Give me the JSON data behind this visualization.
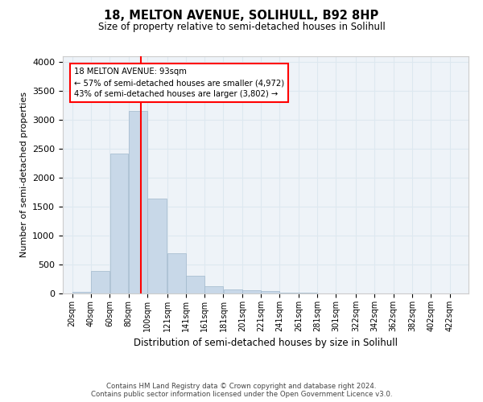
{
  "title": "18, MELTON AVENUE, SOLIHULL, B92 8HP",
  "subtitle": "Size of property relative to semi-detached houses in Solihull",
  "xlabel": "Distribution of semi-detached houses by size in Solihull",
  "ylabel": "Number of semi-detached properties",
  "footer_line1": "Contains HM Land Registry data © Crown copyright and database right 2024.",
  "footer_line2": "Contains public sector information licensed under the Open Government Licence v3.0.",
  "property_label": "18 MELTON AVENUE: 93sqm",
  "smaller_pct": 57,
  "smaller_count": 4972,
  "larger_pct": 43,
  "larger_count": 3802,
  "bin_labels": [
    "20sqm",
    "40sqm",
    "60sqm",
    "80sqm",
    "100sqm",
    "121sqm",
    "141sqm",
    "161sqm",
    "181sqm",
    "201sqm",
    "221sqm",
    "241sqm",
    "261sqm",
    "281sqm",
    "301sqm",
    "322sqm",
    "342sqm",
    "362sqm",
    "382sqm",
    "402sqm",
    "422sqm"
  ],
  "bin_edges": [
    20,
    40,
    60,
    80,
    100,
    121,
    141,
    161,
    181,
    201,
    221,
    241,
    261,
    281,
    301,
    322,
    342,
    362,
    382,
    402,
    422
  ],
  "bar_heights": [
    30,
    390,
    2420,
    3150,
    1640,
    690,
    305,
    120,
    65,
    55,
    40,
    20,
    10,
    5,
    3,
    2,
    2,
    1,
    1,
    0,
    0
  ],
  "bar_color": "#c8d8e8",
  "bar_edge_color": "#a0b8cc",
  "grid_color": "#dde8f0",
  "background_color": "#eef3f8",
  "marker_x": 93,
  "marker_color": "red",
  "ylim": [
    0,
    4100
  ],
  "yticks": [
    0,
    500,
    1000,
    1500,
    2000,
    2500,
    3000,
    3500,
    4000
  ],
  "xlim_left": 10,
  "xlim_right": 442
}
